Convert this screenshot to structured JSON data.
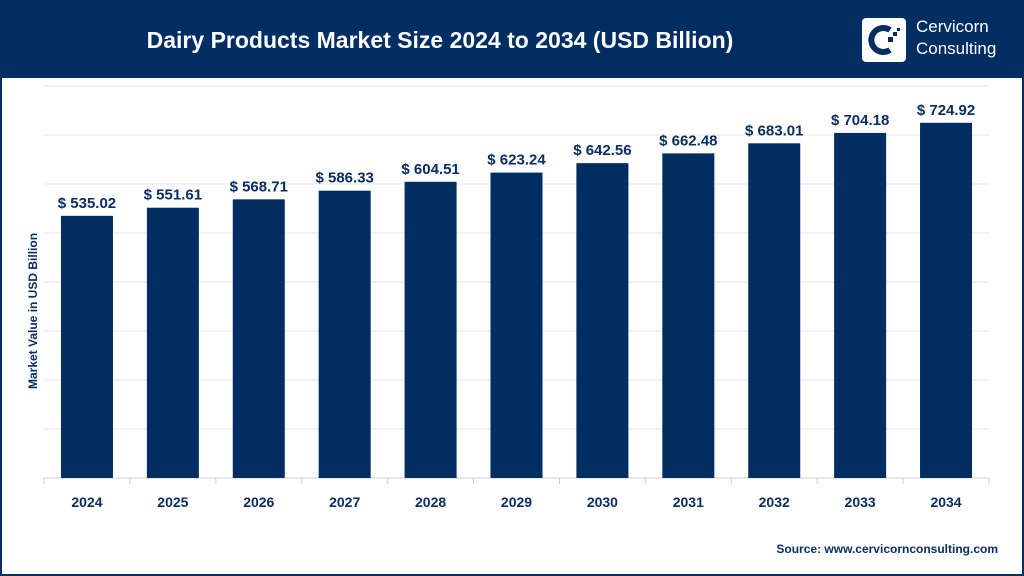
{
  "header": {
    "title": "Dairy Products Market Size 2024 to 2034 (USD Billion)"
  },
  "logo": {
    "line1": "Cervicorn",
    "line2": "Consulting"
  },
  "source": "Source: www.cervicornconsulting.com",
  "colors": {
    "bar": "#002d62",
    "header": "#002d62",
    "text": "#0a2d63",
    "grid": "#e6e6e6"
  },
  "chart_data": {
    "type": "bar",
    "title": "Dairy Products Market Size 2024 to 2034 (USD Billion)",
    "xlabel": "",
    "ylabel": "Market Value in USD Billion",
    "categories": [
      "2024",
      "2025",
      "2026",
      "2027",
      "2028",
      "2029",
      "2030",
      "2031",
      "2032",
      "2033",
      "2034"
    ],
    "values": [
      535.02,
      551.61,
      568.71,
      586.33,
      604.51,
      623.24,
      642.56,
      662.48,
      683.01,
      704.18,
      724.92
    ],
    "data_labels": [
      "$ 535.02",
      "$ 551.61",
      "$ 568.71",
      "$ 586.33",
      "$ 604.51",
      "$ 623.24",
      "$ 642.56",
      "$ 662.48",
      "$ 683.01",
      "$ 704.18",
      "$ 724.92"
    ],
    "ylim": [
      0,
      800
    ],
    "grid": true,
    "grid_step": 100,
    "y_tick_labels_shown": false
  }
}
